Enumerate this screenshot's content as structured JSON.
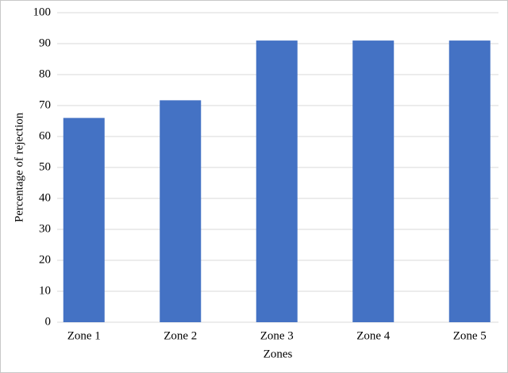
{
  "chart_data": {
    "type": "bar",
    "x_label": "Zones",
    "y_label": "Percentage of rejection",
    "categories": [
      "Zone 1",
      "Zone 2",
      "Zone 3",
      "Zone 4",
      "Zone 5"
    ],
    "values": [
      66,
      71.7,
      91,
      91,
      91
    ],
    "color": "#4472c4",
    "ylim": [
      0,
      100
    ],
    "yticks": [
      0,
      10,
      20,
      30,
      40,
      50,
      60,
      70,
      80,
      90,
      100
    ],
    "grid": true
  }
}
